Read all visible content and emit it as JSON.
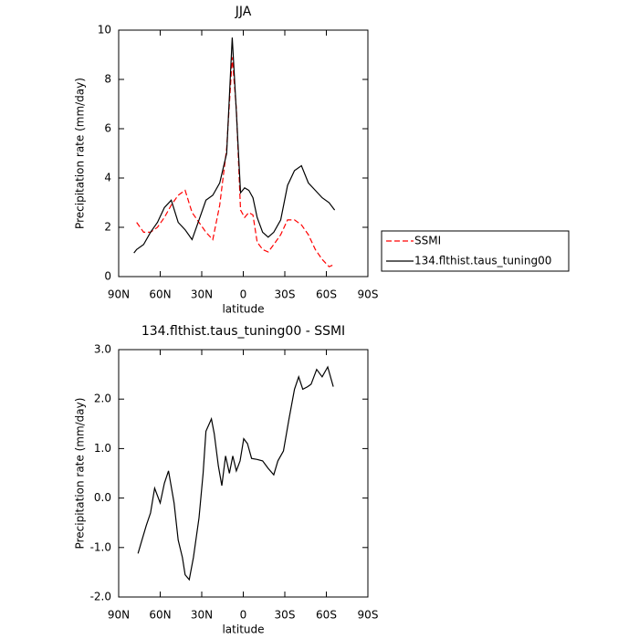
{
  "chart_data": [
    {
      "type": "line",
      "title": "JJA",
      "xlabel": "latitude",
      "ylabel": "Precipitation rate (mm/day)",
      "x": [
        79,
        77,
        72,
        67,
        62,
        57,
        52,
        47,
        42,
        37,
        32,
        27,
        22,
        17,
        12,
        8,
        5,
        2,
        -1,
        -4,
        -7,
        -10,
        -14,
        -18,
        -22,
        -27,
        -32,
        -37,
        -42,
        -47,
        -52,
        -57,
        -62,
        -66
      ],
      "xlim": [
        90,
        -90
      ],
      "xticks": [
        {
          "value": 90,
          "label": "90N"
        },
        {
          "value": 60,
          "label": "60N"
        },
        {
          "value": 30,
          "label": "30N"
        },
        0,
        {
          "value": -30,
          "label": "30S"
        },
        {
          "value": -60,
          "label": "60S"
        },
        {
          "value": -90,
          "label": "90S"
        }
      ],
      "ylim": [
        0,
        10
      ],
      "yticks": [
        0,
        2,
        4,
        6,
        8,
        10
      ],
      "legend": "right",
      "series": [
        {
          "name": "SSMI",
          "color": "#ff0000",
          "dashed": true,
          "values": [
            null,
            2.2,
            1.8,
            1.8,
            2.0,
            2.4,
            2.9,
            3.3,
            3.5,
            2.6,
            2.2,
            1.8,
            1.5,
            2.9,
            5.2,
            8.9,
            6.8,
            2.7,
            2.4,
            2.6,
            2.5,
            1.4,
            1.1,
            1.0,
            1.3,
            1.7,
            2.3,
            2.3,
            2.1,
            1.7,
            1.1,
            0.7,
            0.4,
            0.5
          ]
        },
        {
          "name": "134.flthist.taus_tuning00",
          "color": "#000000",
          "dashed": false,
          "values": [
            0.96,
            1.1,
            1.3,
            1.8,
            2.2,
            2.8,
            3.1,
            2.2,
            1.9,
            1.5,
            2.3,
            3.1,
            3.3,
            3.8,
            5.0,
            9.7,
            6.7,
            3.4,
            3.6,
            3.5,
            3.2,
            2.4,
            1.8,
            1.6,
            1.8,
            2.3,
            3.7,
            4.3,
            4.5,
            3.8,
            3.5,
            3.2,
            3.0,
            2.7
          ]
        }
      ]
    },
    {
      "type": "line",
      "title": "134.flthist.taus_tuning00 - SSMI",
      "xlabel": "latitude",
      "ylabel": "Precipitation rate (mm/day)",
      "x": [
        76,
        73.5,
        70,
        67,
        64,
        60,
        57,
        54,
        50,
        47,
        44,
        42,
        39,
        36,
        32,
        29,
        27,
        23,
        21,
        18,
        15.5,
        12.8,
        10,
        7.6,
        5,
        2.3,
        -0.3,
        -3,
        -6,
        -10,
        -14,
        -18,
        -22,
        -25,
        -29,
        -33,
        -37,
        -40,
        -43,
        -46.5,
        -49,
        -53,
        -57,
        -61,
        -65
      ],
      "xlim": [
        90,
        -90
      ],
      "xticks": [
        {
          "value": 90,
          "label": "90N"
        },
        {
          "value": 60,
          "label": "60N"
        },
        {
          "value": 30,
          "label": "30N"
        },
        0,
        {
          "value": -30,
          "label": "30S"
        },
        {
          "value": -60,
          "label": "60S"
        },
        {
          "value": -90,
          "label": "90S"
        }
      ],
      "ylim": [
        -2,
        3
      ],
      "yticks": [
        {
          "value": -2,
          "label": "-2.0"
        },
        {
          "value": -1,
          "label": "-1.0"
        },
        {
          "value": 0,
          "label": "0.0"
        },
        {
          "value": 1,
          "label": "1.0"
        },
        {
          "value": 2,
          "label": "2.0"
        },
        {
          "value": 3,
          "label": "3.0"
        }
      ],
      "color": "#000000",
      "values": [
        -1.12,
        -0.88,
        -0.55,
        -0.3,
        0.2,
        -0.1,
        0.3,
        0.55,
        -0.1,
        -0.85,
        -1.2,
        -1.55,
        -1.65,
        -1.2,
        -0.4,
        0.5,
        1.35,
        1.6,
        1.3,
        0.65,
        0.25,
        0.85,
        0.5,
        0.85,
        0.55,
        0.75,
        1.2,
        1.1,
        0.8,
        0.78,
        0.75,
        0.6,
        0.47,
        0.75,
        0.95,
        1.6,
        2.2,
        2.45,
        2.2,
        2.25,
        2.3,
        2.6,
        2.45,
        2.65,
        2.25
      ]
    }
  ]
}
